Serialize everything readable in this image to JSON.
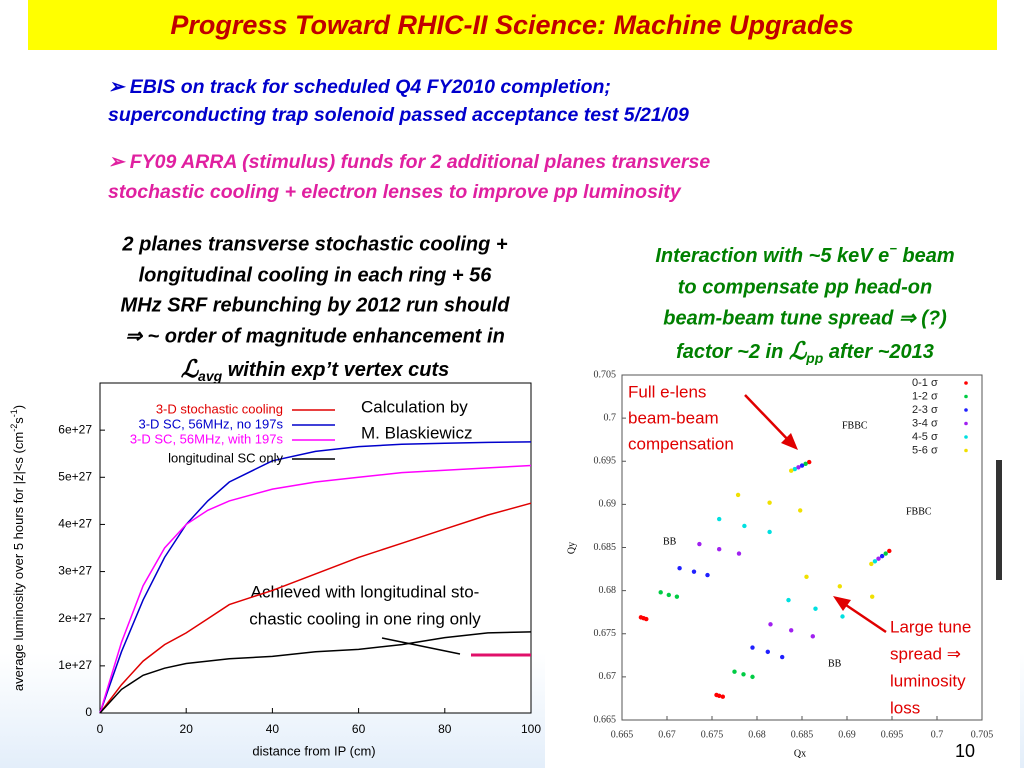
{
  "header": {
    "title": "Progress Toward RHIC-II Science:  Machine Upgrades"
  },
  "bullets": [
    {
      "lines": [
        "EBIS on track for scheduled Q4 FY2010 completion;",
        "superconducting trap solenoid passed acceptance test 5/21/09"
      ]
    },
    {
      "lines": [
        "FY09 ARRA (stimulus) funds for 2 additional planes transverse",
        "stochastic cooling + electron lenses to improve pp luminosity"
      ]
    }
  ],
  "left_text": {
    "lines": [
      "2 planes transverse stochastic cooling +",
      "longitudinal cooling in each ring + 56",
      "MHz SRF rebunching by 2012 run should",
      "⇒ ~ order of magnitude enhancement in"
    ],
    "symbol": "ℒ",
    "subscript": "avg",
    "tail": " within exp’t vertex cuts"
  },
  "right_text": {
    "line1": [
      "Interaction with ~5 keV e",
      "−",
      " beam"
    ],
    "line2": "to compensate pp head-on",
    "line3": "beam-beam tune spread ⇒ (?)",
    "line4": [
      "factor ~2 in ",
      "ℒ",
      "pp",
      " after ~2013"
    ]
  },
  "chart_data": [
    {
      "type": "line",
      "xlabel": "distance from IP (cm)",
      "ylabel": {
        "text": "average luminosity over 5 hours for |z|<s (cm",
        "sup1": "-2",
        "mid": "s",
        "sup2": "-1",
        "end": ")"
      },
      "x": [
        0,
        5,
        10,
        15,
        20,
        25,
        30,
        40,
        50,
        60,
        70,
        80,
        90,
        100
      ],
      "series": [
        {
          "name": "3-D stochastic cooling",
          "color": "#e00000",
          "values": [
            0,
            6e+26,
            1.1e+27,
            1.45e+27,
            1.7e+27,
            2e+27,
            2.3e+27,
            2.6e+27,
            2.95e+27,
            3.3e+27,
            3.6e+27,
            3.9e+27,
            4.2e+27,
            4.45e+27
          ]
        },
        {
          "name": "3-D SC, 56MHz, no 197s",
          "color": "#0000cc",
          "values": [
            0,
            1.3e+27,
            2.4e+27,
            3.3e+27,
            4e+27,
            4.5e+27,
            4.9e+27,
            5.35e+27,
            5.55e+27,
            5.65e+27,
            5.7e+27,
            5.72e+27,
            5.74e+27,
            5.75e+27
          ]
        },
        {
          "name": "3-D SC, 56MHz, with 197s",
          "color": "#ff00ff",
          "values": [
            0,
            1.5e+27,
            2.7e+27,
            3.5e+27,
            4e+27,
            4.3e+27,
            4.5e+27,
            4.75e+27,
            4.9e+27,
            5e+27,
            5.1e+27,
            5.15e+27,
            5.2e+27,
            5.25e+27
          ]
        },
        {
          "name": "longitudinal SC only",
          "color": "#000000",
          "values": [
            0,
            5e+26,
            8e+26,
            9.5e+26,
            1.05e+27,
            1.1e+27,
            1.15e+27,
            1.2e+27,
            1.3e+27,
            1.35e+27,
            1.45e+27,
            1.6e+27,
            1.7e+27,
            1.72e+27
          ]
        }
      ],
      "xlim": [
        0,
        100
      ],
      "xticks": [
        0,
        20,
        40,
        60,
        80,
        100
      ],
      "ylim": [
        0,
        7e+27
      ],
      "yticks": [
        0,
        {
          "value": 1e+27,
          "label": "1e+27"
        },
        {
          "value": 2e+27,
          "label": "2e+27"
        },
        {
          "value": 3e+27,
          "label": "3e+27"
        },
        {
          "value": 4e+27,
          "label": "4e+27"
        },
        {
          "value": 5e+27,
          "label": "5e+27"
        },
        {
          "value": 6e+27,
          "label": "6e+27"
        }
      ],
      "annotations": [
        [
          "Calculation by",
          "M. Blaskiewicz"
        ],
        [
          "Achieved with longitudinal sto-",
          "chastic cooling in one ring only"
        ]
      ]
    },
    {
      "type": "scatter",
      "xlabel": "Qx",
      "ylabel": "Qy",
      "xlim": [
        0.665,
        0.705
      ],
      "ylim": [
        0.665,
        0.705
      ],
      "xticks": [
        0.665,
        0.67,
        0.675,
        0.68,
        0.685,
        0.69,
        0.695,
        0.7,
        0.705
      ],
      "yticks": [
        0.665,
        0.67,
        0.675,
        0.68,
        0.685,
        0.69,
        0.695,
        0.7,
        0.705
      ],
      "series": [
        {
          "name": "0-1 σ",
          "color": "#ff0000",
          "x": [
            0.6671,
            0.6674,
            0.6677,
            0.6755,
            0.6758,
            0.6762,
            0.6858,
            0.6947
          ],
          "y": [
            0.6769,
            0.6768,
            0.6767,
            0.6679,
            0.6678,
            0.6677,
            0.6949,
            0.6846
          ]
        },
        {
          "name": "1-2 σ",
          "color": "#00cc44",
          "x": [
            0.6693,
            0.6702,
            0.6711,
            0.6775,
            0.6785,
            0.6795,
            0.6854,
            0.6943
          ],
          "y": [
            0.6798,
            0.6795,
            0.6793,
            0.6706,
            0.6703,
            0.67,
            0.6947,
            0.6843
          ]
        },
        {
          "name": "2-3 σ",
          "color": "#2020ff",
          "x": [
            0.6714,
            0.673,
            0.6745,
            0.6795,
            0.6812,
            0.6828,
            0.685,
            0.6939
          ],
          "y": [
            0.6826,
            0.6822,
            0.6818,
            0.6734,
            0.6729,
            0.6723,
            0.6945,
            0.684
          ]
        },
        {
          "name": "3-4 σ",
          "color": "#a020f0",
          "x": [
            0.6736,
            0.6758,
            0.678,
            0.6815,
            0.6838,
            0.6862,
            0.6846,
            0.6935
          ],
          "y": [
            0.6854,
            0.6848,
            0.6843,
            0.6761,
            0.6754,
            0.6747,
            0.6943,
            0.6837
          ]
        },
        {
          "name": "4-5 σ",
          "color": "#00e0e0",
          "x": [
            0.6758,
            0.6786,
            0.6814,
            0.6835,
            0.6865,
            0.6895,
            0.6842,
            0.6931
          ],
          "y": [
            0.6883,
            0.6875,
            0.6868,
            0.6789,
            0.6779,
            0.677,
            0.6941,
            0.6834
          ]
        },
        {
          "name": "5-6 σ",
          "color": "#f0e000",
          "x": [
            0.6779,
            0.6814,
            0.6848,
            0.6855,
            0.6892,
            0.6928,
            0.6838,
            0.6927
          ],
          "y": [
            0.6911,
            0.6902,
            0.6893,
            0.6816,
            0.6805,
            0.6793,
            0.6939,
            0.6831
          ]
        }
      ],
      "region_labels": [
        "FBBC",
        "BB",
        "FBBC",
        "BB"
      ],
      "annotations": [
        [
          "Full e-lens",
          "beam-beam",
          "compensation"
        ],
        [
          "Large tune",
          "spread ⇒",
          "luminosity",
          "loss"
        ]
      ]
    }
  ],
  "page_number": "10"
}
